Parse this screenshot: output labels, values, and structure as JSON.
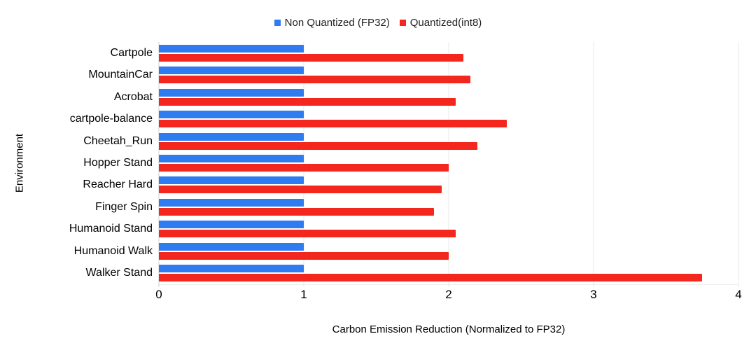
{
  "chart_data": {
    "type": "bar",
    "orientation": "horizontal",
    "title": "",
    "xlabel": "Carbon Emission Reduction (Normalized to FP32)",
    "ylabel": "Environment",
    "xlim": [
      0,
      4
    ],
    "x_ticks": [
      0,
      1,
      2,
      3,
      4
    ],
    "x_tick_labels": [
      "0",
      "1",
      "2",
      "3",
      "4"
    ],
    "grid": true,
    "legend_position": "top",
    "categories": [
      "Cartpole",
      "MountainCar",
      "Acrobat",
      "cartpole-balance",
      "Cheetah_Run",
      "Hopper Stand",
      "Reacher Hard",
      "Finger Spin",
      "Humanoid Stand",
      "Humanoid Walk",
      "Walker Stand"
    ],
    "series": [
      {
        "name": "Non Quantized (FP32)",
        "color": "#2e7cf0",
        "values": [
          1.0,
          1.0,
          1.0,
          1.0,
          1.0,
          1.0,
          1.0,
          1.0,
          1.0,
          1.0,
          1.0
        ]
      },
      {
        "name": "Quantized(int8)",
        "color": "#f4271e",
        "values": [
          2.1,
          2.15,
          2.05,
          2.4,
          2.2,
          2.0,
          1.95,
          1.9,
          2.05,
          2.0,
          3.75
        ]
      }
    ],
    "colors": {
      "grid": "#e8e8e8",
      "zero_line": "#cfcfcf",
      "text": "#000000"
    }
  }
}
